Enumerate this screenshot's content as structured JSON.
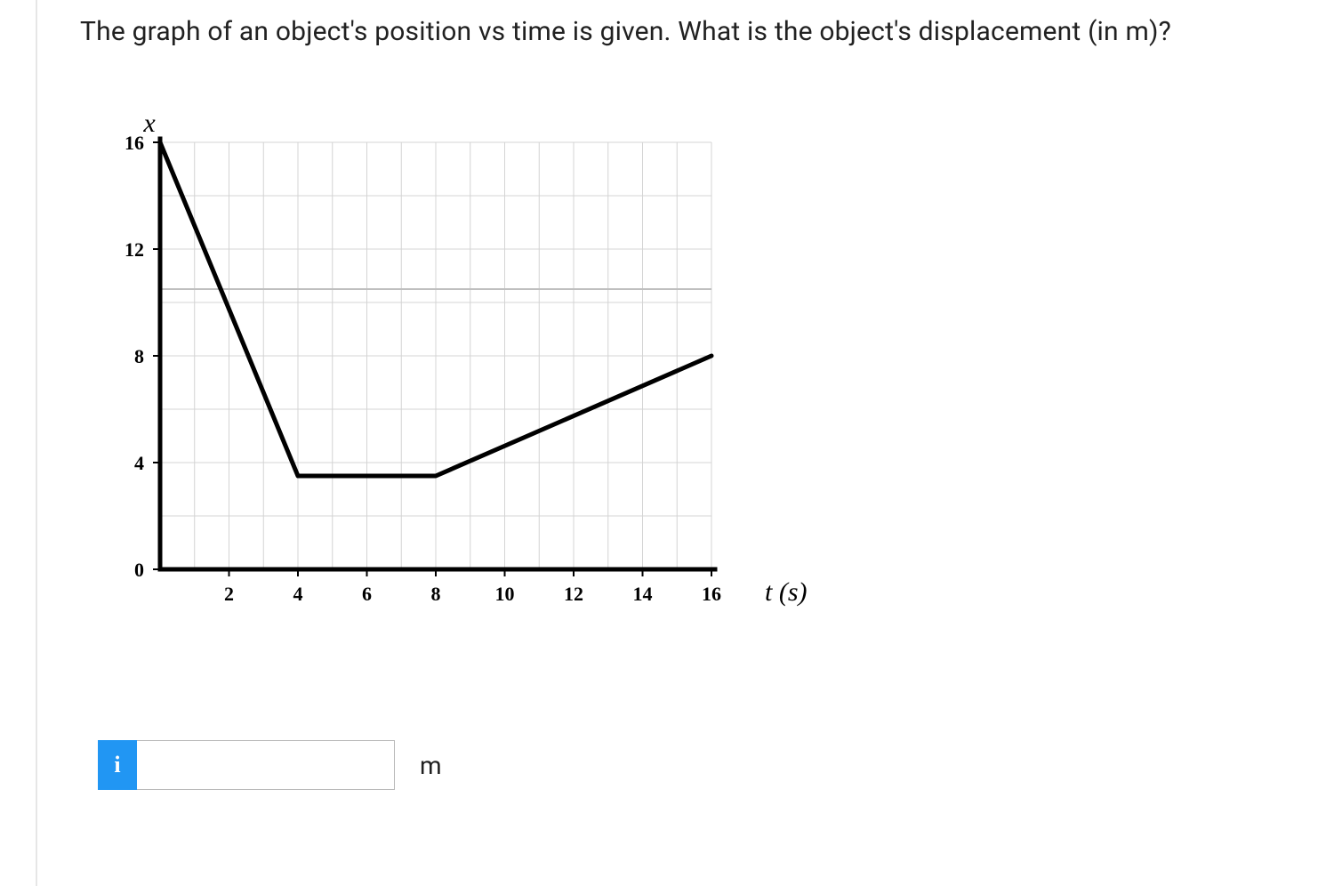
{
  "question_text": "The graph of an object's position vs time is given. What is the object's displacement (in m)?",
  "chart": {
    "type": "line",
    "y_axis_label": "x",
    "x_axis_label": "t (s)",
    "xlim": [
      0,
      16
    ],
    "ylim": [
      0,
      16
    ],
    "xtick_step": 2,
    "ytick_step": 4,
    "xtick_labels": [
      "2",
      "4",
      "6",
      "8",
      "10",
      "12",
      "14",
      "16"
    ],
    "ytick_labels": [
      "0",
      "4",
      "8",
      "12",
      "16"
    ],
    "grid": true,
    "grid_color": "#d4d4d4",
    "emphasized_grid_y": 10.5,
    "emphasized_grid_color": "#bfbfbf",
    "background_color": "#ffffff",
    "axis_color": "#000000",
    "axis_width": 5,
    "line_color": "#000000",
    "line_width": 5,
    "tick_fontsize": 22,
    "label_fontsize": 30,
    "data_points": [
      {
        "t": 0,
        "x": 16
      },
      {
        "t": 4,
        "x": 3.5
      },
      {
        "t": 8,
        "x": 3.5
      },
      {
        "t": 16,
        "x": 8
      }
    ]
  },
  "answer": {
    "info_icon_label": "i",
    "input_value": "",
    "input_placeholder": "",
    "unit": "m"
  },
  "colors": {
    "info_button_bg": "#2196f3",
    "info_button_fg": "#ffffff",
    "input_border": "#b9b9b9",
    "text": "#212121",
    "left_rule": "#e6e6e6"
  }
}
